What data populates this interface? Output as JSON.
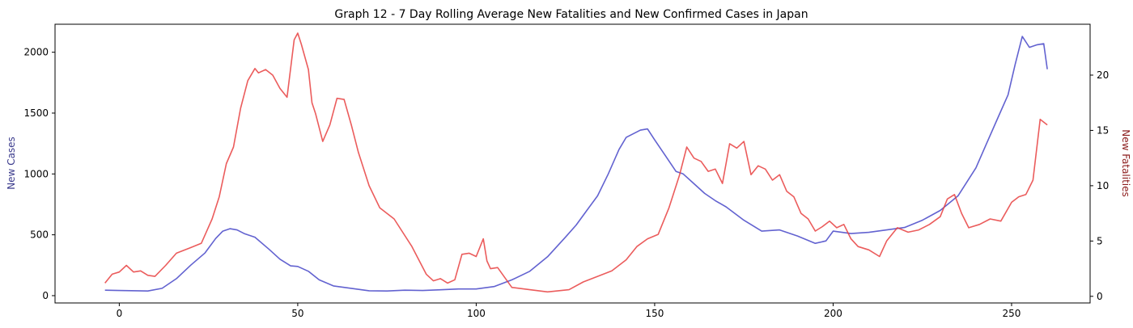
{
  "chart_data": {
    "type": "line",
    "title": "Graph 12 - 7 Day Rolling Average New Fatalities and New Confirmed Cases in Japan",
    "xlabel": "",
    "xlim": [
      -18,
      272
    ],
    "x_ticks": [
      0,
      50,
      100,
      150,
      200,
      250
    ],
    "grid": false,
    "legend": "none",
    "axes": {
      "left": {
        "label": "New Cases",
        "label_color": "#3a3a8c",
        "ylim": [
          -60,
          2230
        ],
        "ticks": [
          0,
          500,
          1000,
          1500,
          2000
        ]
      },
      "right": {
        "label": "New Fatalities",
        "label_color": "#8b1a1a",
        "ylim": [
          -0.6,
          24.6
        ],
        "ticks": [
          0,
          5,
          10,
          15,
          20
        ]
      }
    },
    "series": [
      {
        "axis": "left",
        "color": "#4646c8",
        "x": [
          -4,
          0,
          5,
          8,
          12,
          16,
          20,
          24,
          27,
          29,
          31,
          33,
          35,
          38,
          42,
          45,
          48,
          50,
          53,
          56,
          60,
          65,
          70,
          75,
          80,
          85,
          90,
          95,
          100,
          105,
          110,
          115,
          120,
          125,
          128,
          131,
          134,
          137,
          140,
          142,
          144,
          146,
          148,
          150,
          153,
          156,
          158,
          161,
          164,
          167,
          170,
          175,
          180,
          185,
          190,
          195,
          198,
          200,
          205,
          210,
          215,
          220,
          225,
          230,
          235,
          240,
          243,
          246,
          249,
          251,
          253,
          255,
          257,
          259,
          260
        ],
        "y": [
          45,
          42,
          40,
          38,
          60,
          140,
          250,
          350,
          470,
          530,
          550,
          540,
          510,
          480,
          380,
          300,
          245,
          240,
          200,
          130,
          80,
          60,
          40,
          38,
          45,
          42,
          48,
          55,
          55,
          75,
          130,
          200,
          320,
          480,
          580,
          700,
          820,
          1000,
          1200,
          1300,
          1330,
          1360,
          1370,
          1280,
          1150,
          1020,
          1000,
          920,
          840,
          780,
          730,
          620,
          530,
          540,
          490,
          430,
          450,
          530,
          510,
          520,
          540,
          560,
          620,
          700,
          820,
          1050,
          1250,
          1450,
          1650,
          1900,
          2130,
          2040,
          2060,
          2070,
          1860
        ]
      },
      {
        "axis": "right",
        "color": "#e84040",
        "x": [
          -4,
          -2,
          0,
          2,
          4,
          6,
          8,
          10,
          13,
          16,
          20,
          23,
          26,
          28,
          30,
          32,
          34,
          36,
          38,
          39,
          41,
          43,
          45,
          47,
          49,
          50,
          51,
          53,
          54,
          55,
          57,
          59,
          61,
          63,
          65,
          67,
          70,
          73,
          77,
          82,
          86,
          88,
          90,
          92,
          94,
          96,
          98,
          100,
          102,
          103,
          104,
          106,
          110,
          115,
          120,
          123,
          126,
          130,
          134,
          138,
          142,
          145,
          148,
          151,
          154,
          157,
          159,
          161,
          163,
          165,
          167,
          169,
          171,
          173,
          175,
          177,
          179,
          181,
          183,
          185,
          187,
          189,
          191,
          193,
          195,
          197,
          199,
          201,
          203,
          205,
          207,
          210,
          213,
          215,
          218,
          221,
          224,
          227,
          230,
          232,
          234,
          236,
          238,
          241,
          244,
          247,
          250,
          252,
          254,
          256,
          258,
          260
        ],
        "y": [
          1.2,
          2.0,
          2.2,
          2.8,
          2.2,
          2.3,
          1.9,
          1.8,
          2.8,
          3.9,
          4.4,
          4.8,
          7.0,
          9.0,
          12.0,
          13.5,
          17.0,
          19.5,
          20.6,
          20.2,
          20.5,
          20.0,
          18.8,
          18.0,
          23.2,
          23.8,
          22.8,
          20.5,
          17.5,
          16.5,
          14.0,
          15.5,
          17.9,
          17.8,
          15.5,
          13.0,
          10.0,
          8.0,
          7.0,
          4.5,
          2.0,
          1.4,
          1.6,
          1.2,
          1.5,
          3.8,
          3.9,
          3.6,
          5.2,
          3.2,
          2.5,
          2.6,
          0.8,
          0.6,
          0.4,
          0.5,
          0.6,
          1.3,
          1.8,
          2.3,
          3.3,
          4.5,
          5.2,
          5.6,
          8.0,
          11.0,
          13.5,
          12.5,
          12.2,
          11.3,
          11.5,
          10.2,
          13.8,
          13.4,
          14.0,
          11.0,
          11.8,
          11.5,
          10.5,
          11.0,
          9.5,
          9.0,
          7.5,
          7.0,
          5.9,
          6.3,
          6.8,
          6.2,
          6.5,
          5.2,
          4.5,
          4.2,
          3.6,
          5.0,
          6.2,
          5.8,
          6.0,
          6.5,
          7.2,
          8.8,
          9.2,
          7.5,
          6.2,
          6.5,
          7.0,
          6.8,
          8.5,
          9.0,
          9.2,
          10.5,
          16.0,
          15.5
        ]
      }
    ]
  }
}
